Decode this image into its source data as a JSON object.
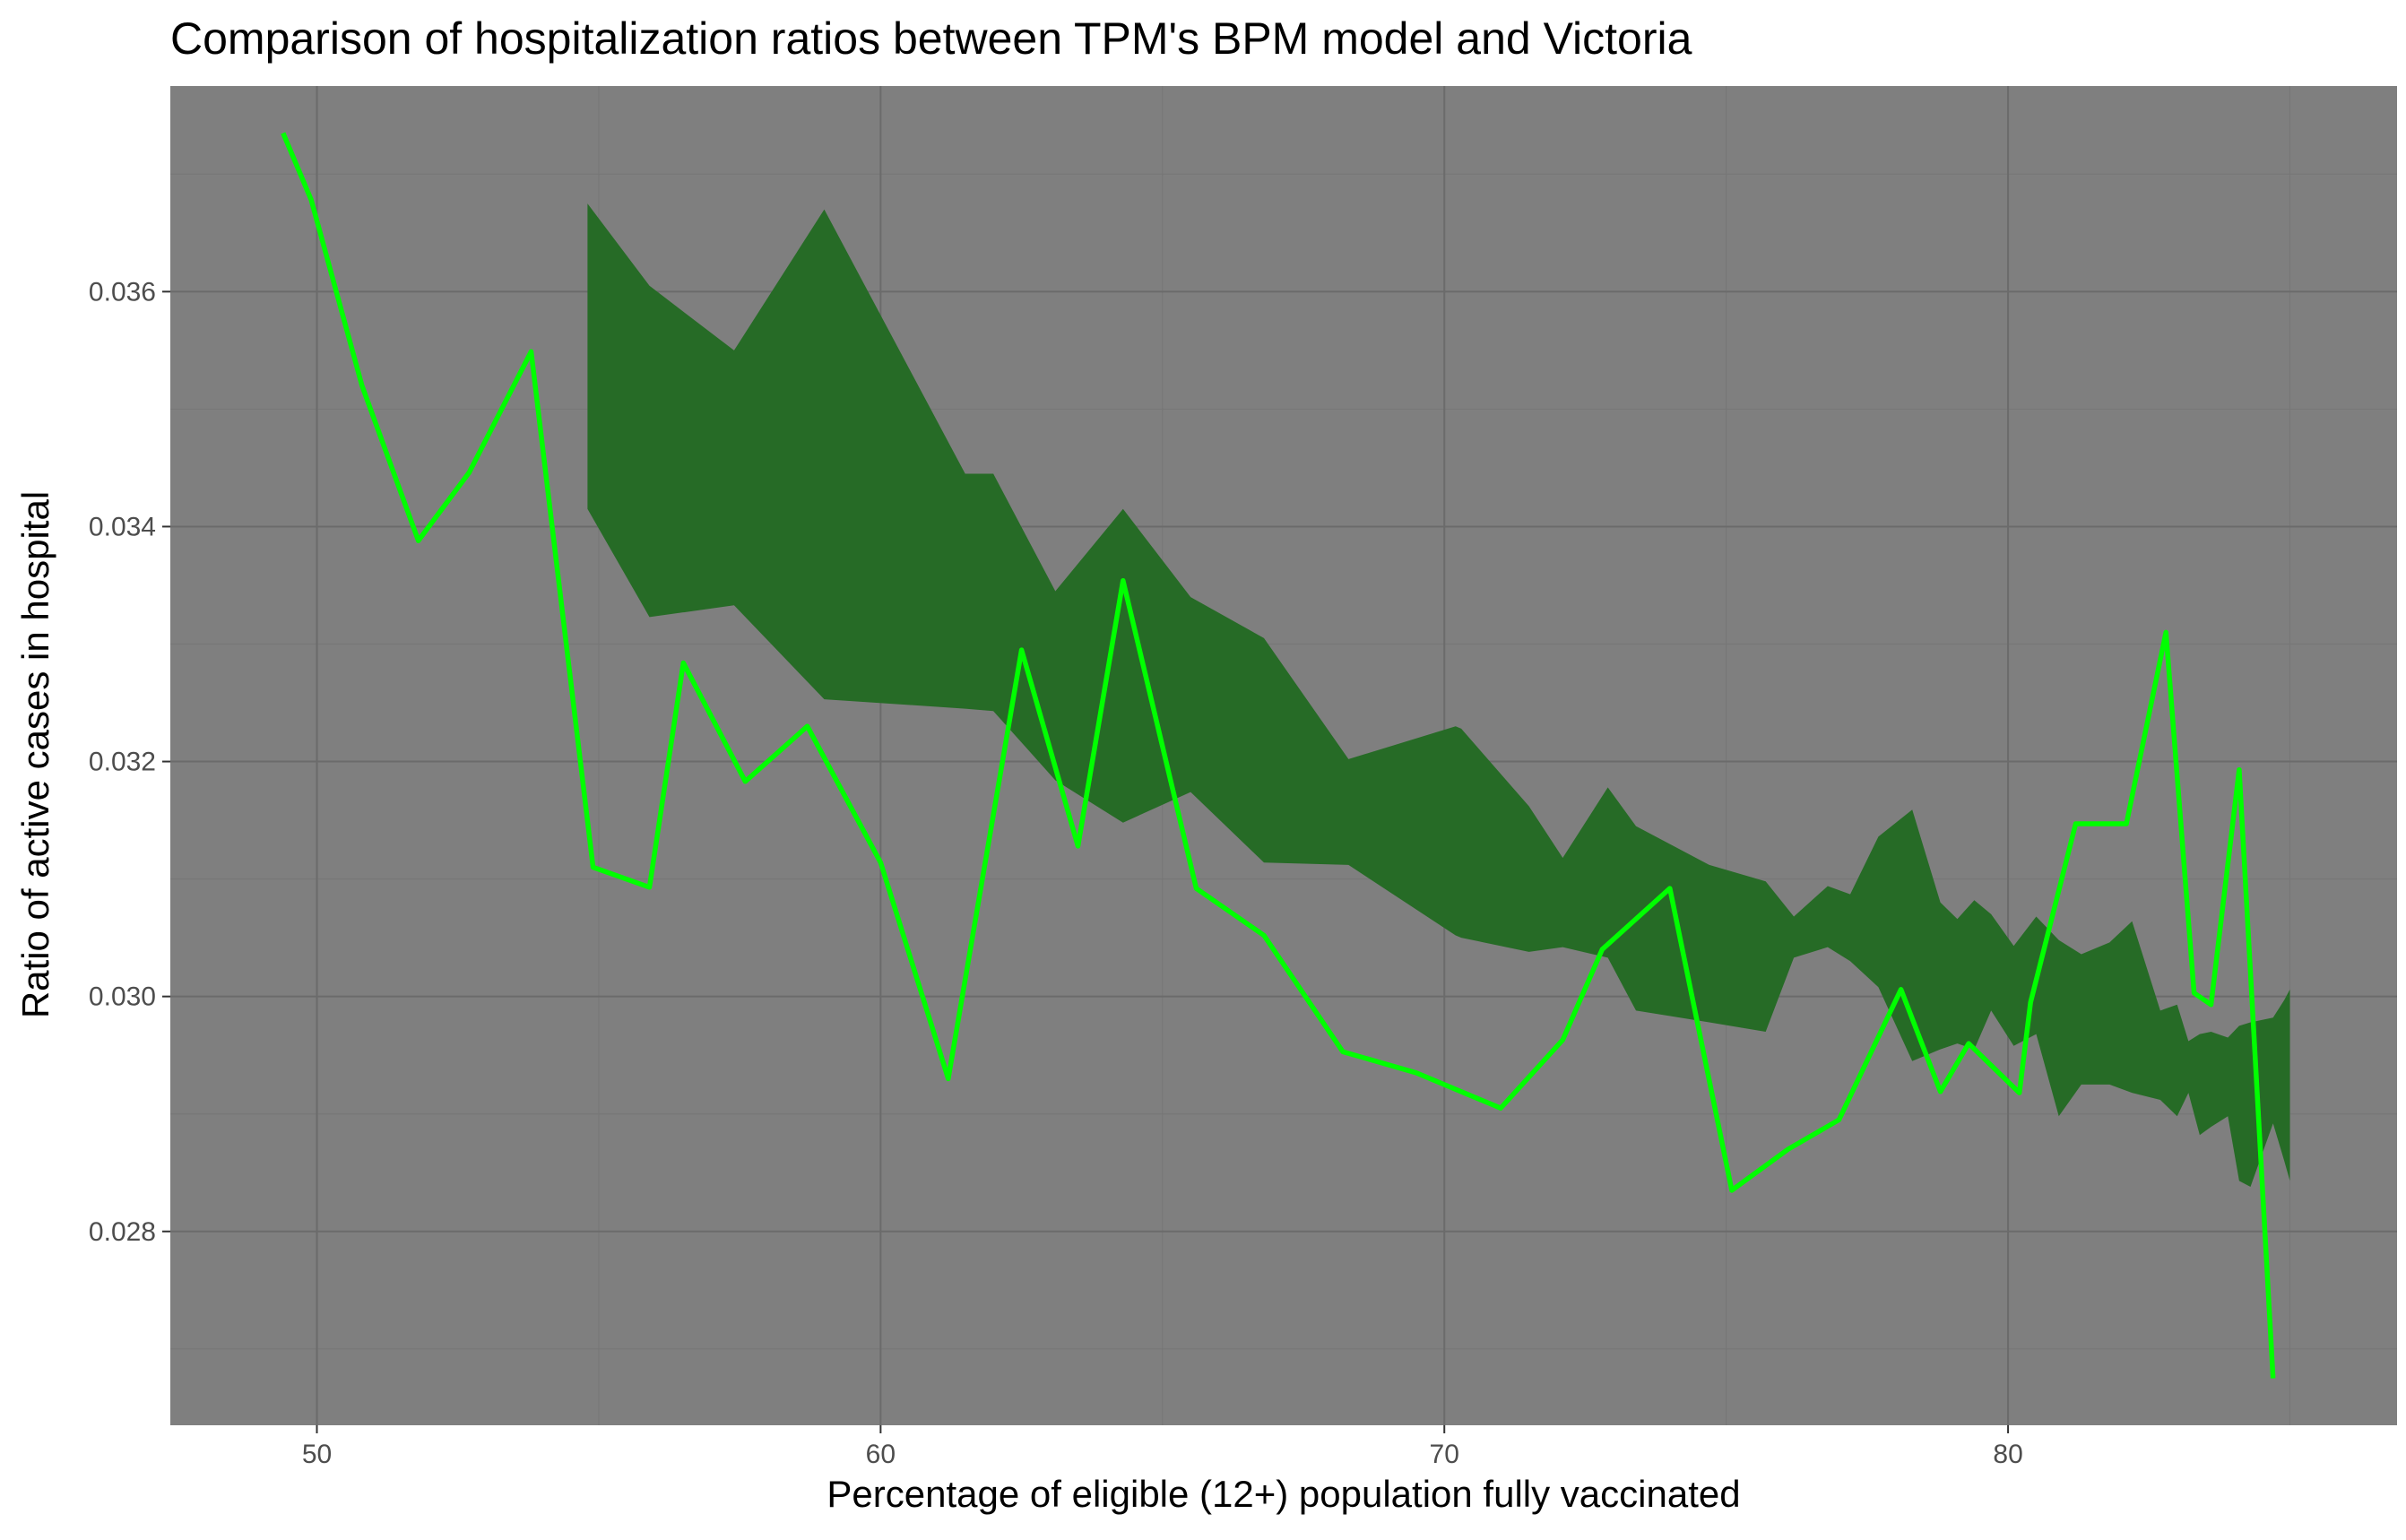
{
  "chart_data": {
    "type": "line",
    "title": "Comparison of hospitalization ratios between TPM's BPM model and Victoria",
    "xlabel": "Percentage of eligible (12+) population fully vaccinated",
    "ylabel": "Ratio of active cases in hospital",
    "xlim": [
      47.4,
      86.9
    ],
    "ylim": [
      0.02635,
      0.03775
    ],
    "xticks": [
      50,
      60,
      70,
      80
    ],
    "xtick_labels": [
      "50",
      "60",
      "70",
      "80"
    ],
    "yticks": [
      0.028,
      0.03,
      0.032,
      0.034,
      0.036
    ],
    "ytick_labels": [
      "0.028",
      "0.030",
      "0.032",
      "0.034",
      "0.036"
    ],
    "grid": true,
    "panel_background": "#7f7f7f",
    "major_grid_color": "#6b6b6b",
    "minor_grid_color": "#767676",
    "band": {
      "color": "#266b26",
      "x": [
        54.8,
        55.9,
        57.4,
        59.0,
        61.5,
        62.0,
        63.1,
        64.3,
        65.5,
        66.8,
        68.3,
        70.2,
        70.3,
        71.5,
        72.1,
        72.9,
        73.4,
        74.7,
        75.7,
        76.2,
        76.8,
        77.2,
        77.7,
        78.3,
        78.8,
        79.1,
        79.4,
        79.7,
        80.1,
        80.5,
        80.9,
        81.3,
        81.8,
        82.2,
        82.7,
        83.0,
        83.2,
        83.4,
        83.6,
        83.9,
        84.1,
        84.3,
        84.7,
        84.9,
        85.0
      ],
      "upper": [
        0.03675,
        0.03605,
        0.0355,
        0.0367,
        0.03445,
        0.03445,
        0.03345,
        0.03415,
        0.0334,
        0.03305,
        0.03202,
        0.0323,
        0.03228,
        0.03162,
        0.03118,
        0.03178,
        0.03145,
        0.03112,
        0.03098,
        0.03068,
        0.03094,
        0.03087,
        0.03136,
        0.03159,
        0.0308,
        0.03066,
        0.03082,
        0.0307,
        0.03043,
        0.03068,
        0.03048,
        0.03036,
        0.03046,
        0.03064,
        0.02988,
        0.02993,
        0.02962,
        0.02968,
        0.0297,
        0.02965,
        0.02975,
        0.02978,
        0.02982,
        0.02997,
        0.03006
      ],
      "lower": [
        0.03415,
        0.03323,
        0.03333,
        0.03253,
        0.03245,
        0.03243,
        0.03184,
        0.03148,
        0.03174,
        0.03114,
        0.03112,
        0.03052,
        0.0305,
        0.03038,
        0.03042,
        0.03033,
        0.02988,
        0.02978,
        0.0297,
        0.03033,
        0.03042,
        0.0303,
        0.03008,
        0.02945,
        0.02955,
        0.0296,
        0.02955,
        0.02988,
        0.02958,
        0.02968,
        0.02898,
        0.02925,
        0.02925,
        0.02918,
        0.02912,
        0.02898,
        0.02918,
        0.02882,
        0.02889,
        0.02898,
        0.02843,
        0.02838,
        0.02892,
        0.0286,
        0.02843
      ]
    },
    "series": [
      {
        "color": "#00ff00",
        "x": [
          49.4,
          49.9,
          50.8,
          51.8,
          52.7,
          53.8,
          54.9,
          55.9,
          56.5,
          57.6,
          58.7,
          60.0,
          61.2,
          62.5,
          63.5,
          64.3,
          65.6,
          66.8,
          68.2,
          69.5,
          71.0,
          72.1,
          72.8,
          74.0,
          75.1,
          76.1,
          77.0,
          78.1,
          78.8,
          79.3,
          80.2,
          80.4,
          81.2,
          82.1,
          82.8,
          83.3,
          83.6,
          84.1,
          84.7
        ],
        "y": [
          0.03735,
          0.03678,
          0.0352,
          0.03388,
          0.03446,
          0.03549,
          0.0311,
          0.03093,
          0.03284,
          0.03183,
          0.0323,
          0.03114,
          0.0293,
          0.03295,
          0.03128,
          0.03354,
          0.03092,
          0.03052,
          0.02953,
          0.02935,
          0.02905,
          0.02963,
          0.0304,
          0.03092,
          0.02835,
          0.0287,
          0.02895,
          0.03006,
          0.02919,
          0.0296,
          0.02918,
          0.02995,
          0.03147,
          0.03147,
          0.0331,
          0.03003,
          0.02993,
          0.03193,
          0.02675
        ]
      }
    ]
  }
}
